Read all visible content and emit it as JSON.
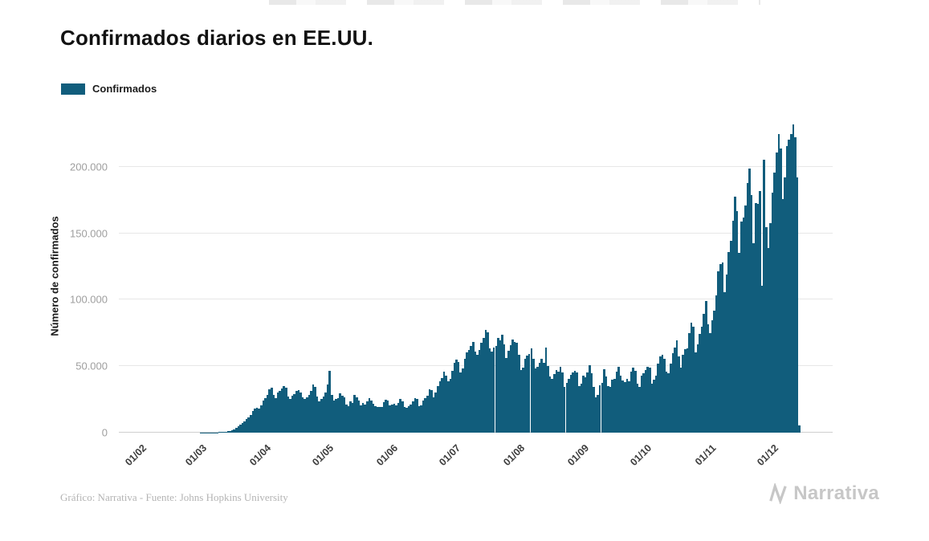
{
  "title": "Confirmados diarios en EE.UU.",
  "legend": {
    "label": "Confirmados",
    "color": "#115d7c"
  },
  "footer": {
    "credit": "Gráfico: Narrativa - Fuente: Johns Hopkins University"
  },
  "brand": {
    "name": "Narrativa"
  },
  "chart_data": {
    "type": "bar",
    "title": "Confirmados diarios en EE.UU.",
    "series_name": "Confirmados",
    "xlabel": "",
    "ylabel": "Número de confirmados",
    "ylim": [
      0,
      235000
    ],
    "grid": "horizontal",
    "legend_position": "top-left",
    "bar_color": "#115d7c",
    "yticks": [
      {
        "value": 0,
        "label": "0"
      },
      {
        "value": 50000,
        "label": "50.000"
      },
      {
        "value": 100000,
        "label": "100.000"
      },
      {
        "value": 150000,
        "label": "150.000"
      },
      {
        "value": 200000,
        "label": "200.000"
      }
    ],
    "xticks": [
      {
        "index": 10,
        "label": "01/02"
      },
      {
        "index": 39,
        "label": "01/03"
      },
      {
        "index": 70,
        "label": "01/04"
      },
      {
        "index": 100,
        "label": "01/05"
      },
      {
        "index": 131,
        "label": "01/06"
      },
      {
        "index": 161,
        "label": "01/07"
      },
      {
        "index": 192,
        "label": "01/08"
      },
      {
        "index": 223,
        "label": "01/09"
      },
      {
        "index": 253,
        "label": "01/10"
      },
      {
        "index": 284,
        "label": "01/11"
      },
      {
        "index": 314,
        "label": "01/12"
      }
    ],
    "values": [
      0,
      0,
      0,
      0,
      0,
      0,
      0,
      0,
      0,
      0,
      0,
      0,
      0,
      0,
      0,
      0,
      0,
      0,
      0,
      0,
      0,
      0,
      0,
      0,
      0,
      0,
      0,
      0,
      0,
      0,
      0,
      0,
      0,
      0,
      0,
      0,
      0,
      0,
      0,
      70,
      60,
      80,
      100,
      130,
      160,
      200,
      250,
      300,
      400,
      520,
      640,
      820,
      1050,
      950,
      1700,
      2300,
      3500,
      4800,
      5900,
      7400,
      8300,
      10000,
      11200,
      13000,
      16500,
      18100,
      19000,
      18200,
      20400,
      24200,
      26100,
      28200,
      32400,
      33600,
      28300,
      25900,
      30200,
      31400,
      33100,
      35200,
      34100,
      27200,
      25400,
      27600,
      29300,
      31200,
      32100,
      30400,
      26300,
      25100,
      26400,
      28300,
      31500,
      36200,
      34300,
      26900,
      23400,
      25200,
      27300,
      30100,
      36100,
      46500,
      28400,
      24100,
      25300,
      26200,
      29400,
      28100,
      26300,
      21200,
      20100,
      23300,
      22400,
      28200,
      26600,
      24200,
      20300,
      22100,
      21400,
      23600,
      26200,
      24300,
      21600,
      20200,
      19100,
      19600,
      19200,
      23100,
      24600,
      24200,
      20300,
      21100,
      21600,
      20700,
      22300,
      25200,
      23700,
      19200,
      18600,
      19700,
      21200,
      23300,
      25700,
      25200,
      19800,
      20300,
      24200,
      25700,
      27800,
      32700,
      32300,
      26400,
      30300,
      34800,
      38700,
      41300,
      45700,
      43200,
      38800,
      40300,
      46800,
      52300,
      55200,
      53400,
      45300,
      48200,
      55600,
      60300,
      62400,
      65300,
      68400,
      61300,
      58400,
      62300,
      67400,
      71300,
      77300,
      75600,
      63400,
      61300,
      64200,
      65400,
      71200,
      69300,
      73600,
      66400,
      56300,
      61400,
      65700,
      70200,
      68300,
      67600,
      58400,
      47300,
      49200,
      55400,
      58300,
      59200,
      63700,
      55300,
      48200,
      49300,
      52400,
      55700,
      52300,
      64200,
      50300,
      42200,
      40700,
      44300,
      47200,
      45700,
      49300,
      45200,
      34700,
      37600,
      40200,
      43700,
      45600,
      46700,
      45200,
      35300,
      36600,
      42600,
      41600,
      45200,
      50700,
      44600,
      34200,
      26300,
      28700,
      35600,
      37700,
      47600,
      42200,
      35200,
      34700,
      39700,
      40200,
      45700,
      49700,
      43200,
      39200,
      38300,
      40200,
      38700,
      45700,
      49200,
      46700,
      36700,
      34200,
      42600,
      44700,
      47200,
      49700,
      48700,
      36700,
      39700,
      43200,
      51700,
      57700,
      58700,
      55700,
      45700,
      44700,
      52200,
      59700,
      64200,
      69700,
      57200,
      48700,
      58700,
      62700,
      63700,
      75200,
      82700,
      79700,
      60700,
      66700,
      74200,
      79700,
      89700,
      99200,
      81700,
      74700,
      84700,
      91700,
      103200,
      121700,
      126700,
      128200,
      105700,
      119200,
      136200,
      144200,
      159700,
      177700,
      166700,
      135200,
      158700,
      161700,
      170700,
      187700,
      198700,
      178700,
      142700,
      172700,
      172200,
      181700,
      110700,
      205700,
      154700,
      139200,
      157700,
      180700,
      195700,
      210700,
      224700,
      213700,
      175700,
      192200,
      215700,
      220700,
      224700,
      231700,
      222200,
      192200,
      5200
    ]
  }
}
